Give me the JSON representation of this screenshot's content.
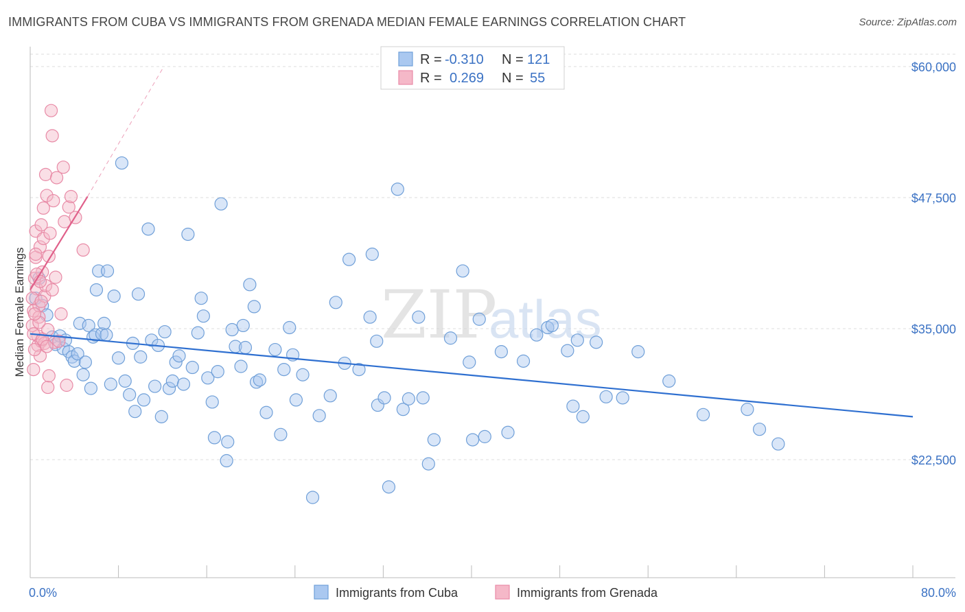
{
  "title": "IMMIGRANTS FROM CUBA VS IMMIGRANTS FROM GRENADA MEDIAN FEMALE EARNINGS CORRELATION CHART",
  "source": "Source: ZipAtlas.com",
  "watermark": {
    "zip": "ZIP",
    "atlas": "atlas"
  },
  "legend": {
    "rows": [
      {
        "r_label": "R =",
        "r_value": "-0.310",
        "n_label": "N =",
        "n_value": "121"
      },
      {
        "r_label": "R =",
        "r_value": "0.269",
        "n_label": "N =",
        "n_value": "55"
      }
    ]
  },
  "bottom_legend": [
    "Immigrants from Cuba",
    "Immigrants from Grenada"
  ],
  "colors": {
    "cuba_fill": "#aac8f0",
    "cuba_stroke": "#6f9fd8",
    "cuba_line": "#2e6fd0",
    "grenada_fill": "#f5b8c8",
    "grenada_stroke": "#e88aa6",
    "grenada_line": "#e0608a",
    "tick_text": "#3b72c4",
    "grid": "#dcdcdc"
  },
  "chart_data": {
    "type": "scatter",
    "title": "IMMIGRANTS FROM CUBA VS IMMIGRANTS FROM GRENADA MEDIAN FEMALE EARNINGS CORRELATION CHART",
    "xlabel": "",
    "ylabel": "Median Female Earnings",
    "xlim": [
      0,
      80
    ],
    "ylim": [
      12000,
      62000
    ],
    "x_tick_labels": [
      "0.0%",
      "80.0%"
    ],
    "y_ticks": [
      22500,
      35000,
      47500,
      60000
    ],
    "y_tick_labels": [
      "$22,500",
      "$35,000",
      "$47,500",
      "$60,000"
    ],
    "grid": true,
    "legend_placement": "top-center",
    "series": [
      {
        "name": "Immigrants from Cuba",
        "r": -0.31,
        "n": 121,
        "trend": {
          "x": [
            0,
            80
          ],
          "y": [
            34500,
            26600
          ]
        },
        "points": [
          [
            0.5,
            37900
          ],
          [
            0.8,
            39800
          ],
          [
            1.1,
            37200
          ],
          [
            1.5,
            36300
          ],
          [
            2.0,
            34200
          ],
          [
            2.3,
            33500
          ],
          [
            2.7,
            34300
          ],
          [
            3.0,
            33100
          ],
          [
            3.2,
            33900
          ],
          [
            3.5,
            32800
          ],
          [
            3.8,
            32300
          ],
          [
            4.0,
            31900
          ],
          [
            4.3,
            32600
          ],
          [
            4.5,
            35500
          ],
          [
            4.8,
            30600
          ],
          [
            5.0,
            31800
          ],
          [
            5.3,
            35300
          ],
          [
            5.5,
            29300
          ],
          [
            5.7,
            34200
          ],
          [
            5.9,
            34400
          ],
          [
            6.0,
            38700
          ],
          [
            6.2,
            40500
          ],
          [
            6.5,
            34500
          ],
          [
            6.7,
            35500
          ],
          [
            6.9,
            34400
          ],
          [
            7.0,
            40500
          ],
          [
            7.3,
            29700
          ],
          [
            7.6,
            38100
          ],
          [
            8.0,
            32200
          ],
          [
            8.3,
            50800
          ],
          [
            8.6,
            30000
          ],
          [
            9.0,
            28700
          ],
          [
            9.3,
            33600
          ],
          [
            9.5,
            27100
          ],
          [
            9.8,
            38300
          ],
          [
            10.0,
            32300
          ],
          [
            10.3,
            28200
          ],
          [
            10.7,
            44500
          ],
          [
            11.0,
            33900
          ],
          [
            11.3,
            29500
          ],
          [
            11.6,
            33400
          ],
          [
            11.9,
            26600
          ],
          [
            12.2,
            34700
          ],
          [
            12.6,
            29300
          ],
          [
            12.9,
            30000
          ],
          [
            13.2,
            31800
          ],
          [
            13.5,
            32400
          ],
          [
            13.9,
            29700
          ],
          [
            14.3,
            44000
          ],
          [
            14.7,
            31300
          ],
          [
            15.2,
            34600
          ],
          [
            15.5,
            37900
          ],
          [
            15.7,
            36200
          ],
          [
            16.1,
            30300
          ],
          [
            16.5,
            28000
          ],
          [
            16.7,
            24600
          ],
          [
            17.0,
            30900
          ],
          [
            17.3,
            46900
          ],
          [
            17.8,
            22400
          ],
          [
            17.9,
            24200
          ],
          [
            18.3,
            34900
          ],
          [
            18.6,
            33300
          ],
          [
            19.1,
            31400
          ],
          [
            19.3,
            35300
          ],
          [
            19.5,
            33200
          ],
          [
            19.9,
            39200
          ],
          [
            20.3,
            37100
          ],
          [
            20.5,
            29900
          ],
          [
            20.8,
            30100
          ],
          [
            21.4,
            27000
          ],
          [
            22.2,
            33000
          ],
          [
            22.7,
            24900
          ],
          [
            23.0,
            31100
          ],
          [
            23.5,
            35100
          ],
          [
            23.8,
            32500
          ],
          [
            24.1,
            28200
          ],
          [
            24.7,
            30600
          ],
          [
            25.6,
            18900
          ],
          [
            26.2,
            26700
          ],
          [
            27.2,
            28600
          ],
          [
            27.7,
            37500
          ],
          [
            28.5,
            31700
          ],
          [
            28.9,
            41600
          ],
          [
            29.8,
            31100
          ],
          [
            30.8,
            36100
          ],
          [
            31.0,
            42100
          ],
          [
            31.4,
            33800
          ],
          [
            31.5,
            27700
          ],
          [
            32.1,
            28400
          ],
          [
            32.5,
            19900
          ],
          [
            33.3,
            48300
          ],
          [
            33.8,
            27300
          ],
          [
            34.3,
            28300
          ],
          [
            35.2,
            36100
          ],
          [
            35.6,
            28400
          ],
          [
            36.1,
            22100
          ],
          [
            36.6,
            24400
          ],
          [
            38.1,
            34100
          ],
          [
            39.2,
            40500
          ],
          [
            39.8,
            31800
          ],
          [
            40.1,
            24400
          ],
          [
            40.7,
            35900
          ],
          [
            41.2,
            24700
          ],
          [
            42.7,
            32800
          ],
          [
            43.3,
            25100
          ],
          [
            44.7,
            31900
          ],
          [
            45.9,
            34400
          ],
          [
            46.9,
            35100
          ],
          [
            47.3,
            35300
          ],
          [
            48.7,
            32900
          ],
          [
            49.2,
            27600
          ],
          [
            49.6,
            33900
          ],
          [
            50.1,
            26600
          ],
          [
            51.3,
            33700
          ],
          [
            52.2,
            28500
          ],
          [
            53.7,
            28400
          ],
          [
            55.1,
            32800
          ],
          [
            57.9,
            30000
          ],
          [
            61.0,
            26800
          ],
          [
            65.0,
            27300
          ],
          [
            66.1,
            25400
          ],
          [
            67.8,
            24000
          ]
        ]
      },
      {
        "name": "Immigrants from Grenada",
        "r": 0.269,
        "n": 55,
        "trend": {
          "x": [
            0,
            5.2
          ],
          "y": [
            38700,
            47600
          ],
          "x_dashed_to": 12.0,
          "y_dashed_to": 59800
        },
        "points": [
          [
            0.2,
            35300
          ],
          [
            0.3,
            36700
          ],
          [
            0.4,
            39800
          ],
          [
            0.5,
            41800
          ],
          [
            0.5,
            44300
          ],
          [
            0.6,
            38800
          ],
          [
            0.7,
            33400
          ],
          [
            0.7,
            34300
          ],
          [
            0.8,
            36100
          ],
          [
            0.8,
            37200
          ],
          [
            0.9,
            32400
          ],
          [
            0.9,
            42800
          ],
          [
            1.0,
            33800
          ],
          [
            1.0,
            44900
          ],
          [
            1.1,
            40400
          ],
          [
            1.2,
            46500
          ],
          [
            1.2,
            43600
          ],
          [
            1.3,
            38100
          ],
          [
            1.3,
            33600
          ],
          [
            1.4,
            39100
          ],
          [
            1.4,
            49700
          ],
          [
            1.5,
            47700
          ],
          [
            1.6,
            29400
          ],
          [
            1.6,
            34900
          ],
          [
            1.7,
            41900
          ],
          [
            1.7,
            30500
          ],
          [
            1.8,
            44100
          ],
          [
            1.9,
            55800
          ],
          [
            2.0,
            53400
          ],
          [
            2.1,
            47200
          ],
          [
            2.2,
            33700
          ],
          [
            2.3,
            39900
          ],
          [
            2.4,
            49400
          ],
          [
            2.6,
            33800
          ],
          [
            2.8,
            36400
          ],
          [
            3.0,
            50400
          ],
          [
            3.1,
            45200
          ],
          [
            3.3,
            29600
          ],
          [
            3.5,
            46600
          ],
          [
            3.7,
            47600
          ],
          [
            4.1,
            45600
          ],
          [
            4.8,
            42500
          ],
          [
            0.2,
            37900
          ],
          [
            0.3,
            34500
          ],
          [
            0.4,
            33000
          ],
          [
            0.6,
            40200
          ],
          [
            0.8,
            35600
          ],
          [
            1.0,
            37600
          ],
          [
            1.1,
            34000
          ],
          [
            0.3,
            31100
          ],
          [
            0.5,
            42100
          ],
          [
            0.9,
            39500
          ],
          [
            1.5,
            33300
          ],
          [
            0.4,
            36400
          ],
          [
            2.0,
            38700
          ]
        ]
      }
    ]
  }
}
